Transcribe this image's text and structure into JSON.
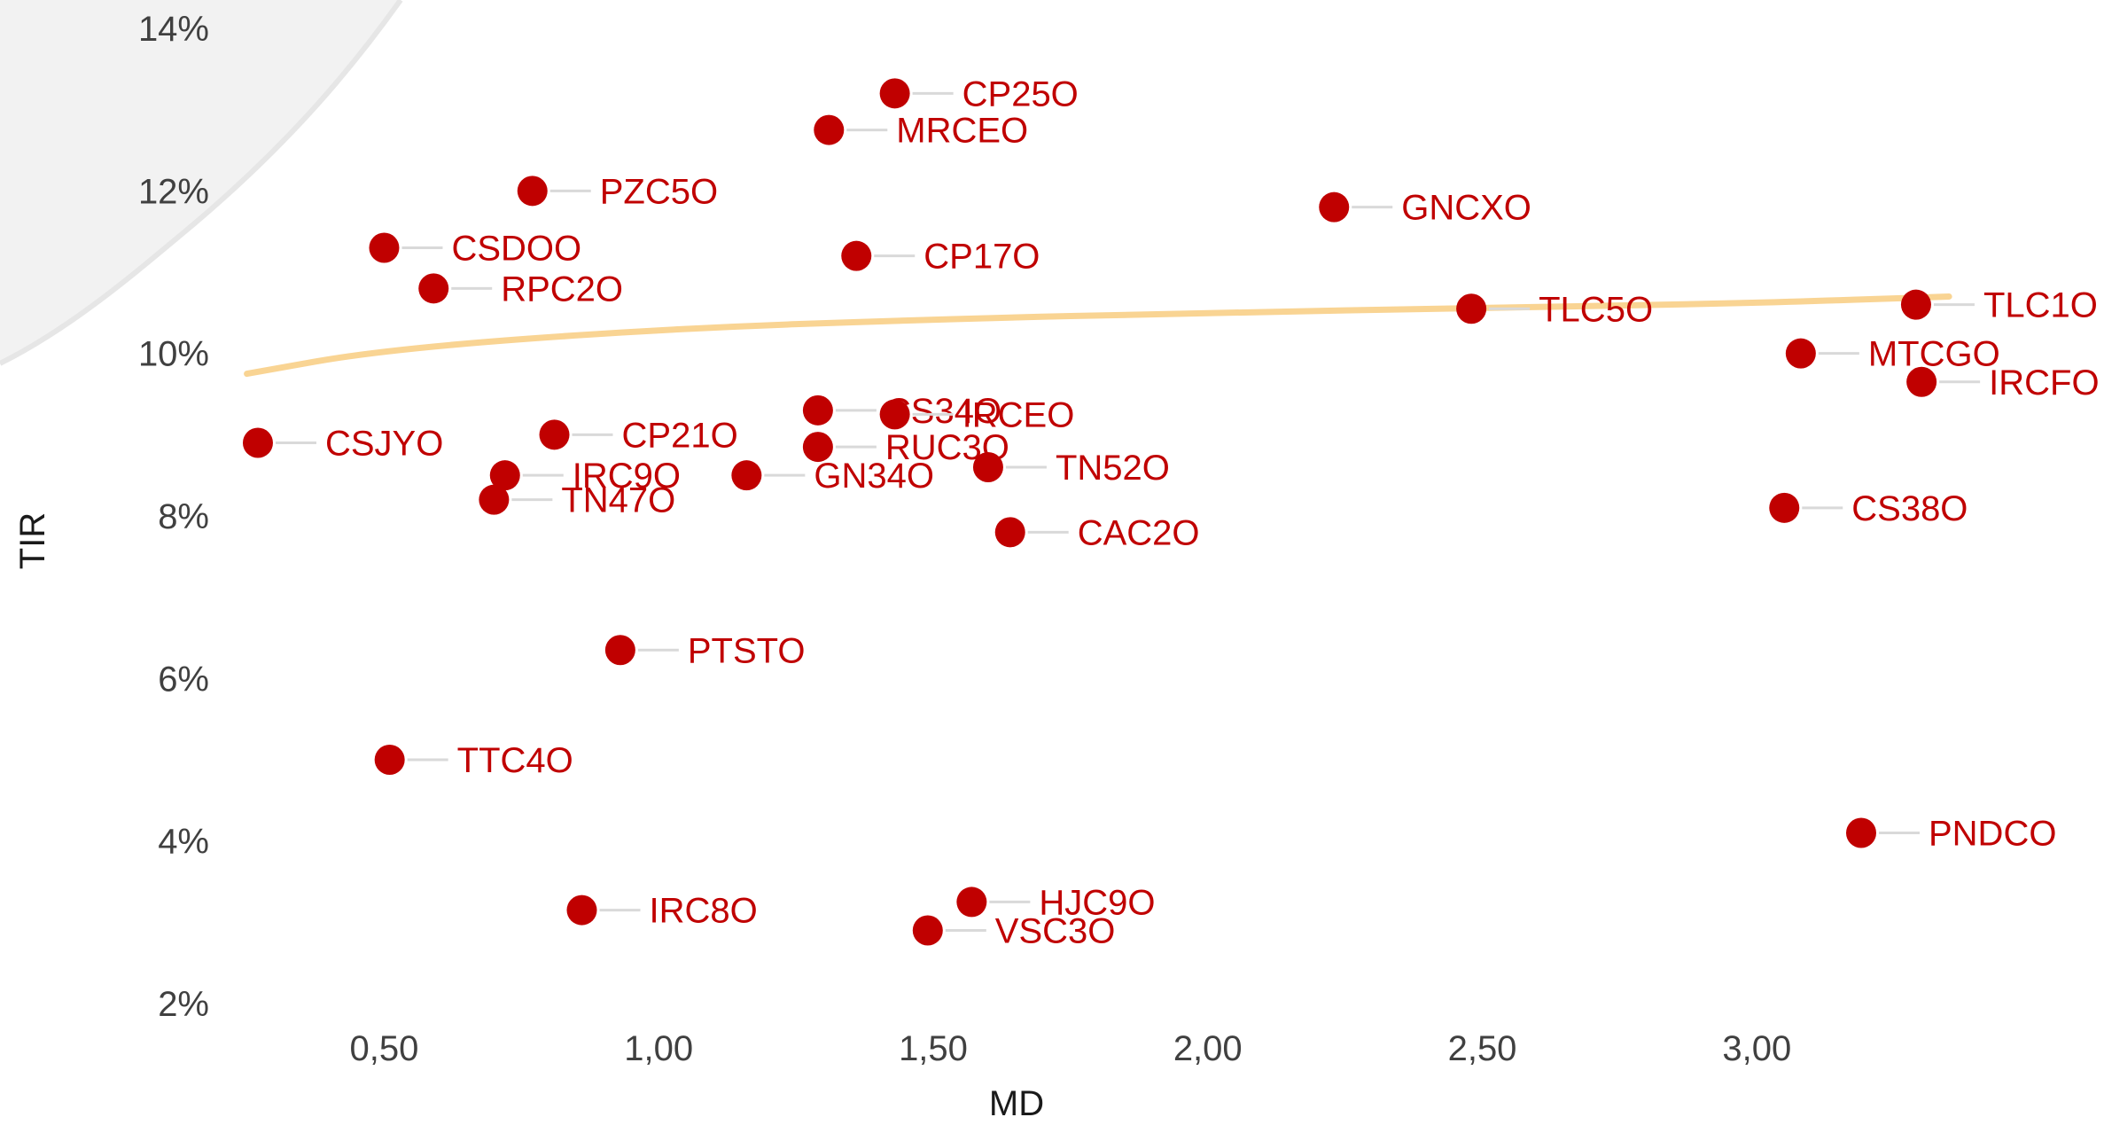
{
  "chart_data": {
    "type": "scatter",
    "xlabel": "MD",
    "ylabel": "TIR",
    "xlim": [
      0.22,
      3.6
    ],
    "ylim": [
      2,
      14
    ],
    "x_ticks": [
      "0,50",
      "1,00",
      "1,50",
      "2,00",
      "2,50",
      "3,00"
    ],
    "x_tick_values": [
      0.5,
      1.0,
      1.5,
      2.0,
      2.5,
      3.0
    ],
    "y_ticks": [
      "2%",
      "4%",
      "6%",
      "8%",
      "10%",
      "12%",
      "14%"
    ],
    "y_tick_values": [
      2,
      4,
      6,
      8,
      10,
      12,
      14
    ],
    "grid": false,
    "colors": {
      "points": "#c00000",
      "labels": "#c00000",
      "trend": "#f9d493",
      "leader": "#d9d9d9"
    },
    "trendline": {
      "type": "logarithmic",
      "points": [
        [
          0.25,
          9.75
        ],
        [
          0.5,
          10.05
        ],
        [
          1.0,
          10.3
        ],
        [
          1.5,
          10.42
        ],
        [
          2.0,
          10.5
        ],
        [
          2.5,
          10.56
        ],
        [
          3.0,
          10.62
        ],
        [
          3.35,
          10.7
        ]
      ]
    },
    "points": [
      {
        "label": "CP25O",
        "x": 1.43,
        "y": 13.2
      },
      {
        "label": "MRCEO",
        "x": 1.31,
        "y": 12.75
      },
      {
        "label": "PZC5O",
        "x": 0.77,
        "y": 12.0
      },
      {
        "label": "GNCXO",
        "x": 2.23,
        "y": 11.8
      },
      {
        "label": "CSDOO",
        "x": 0.5,
        "y": 11.3
      },
      {
        "label": "CP17O",
        "x": 1.36,
        "y": 11.2
      },
      {
        "label": "RPC2O",
        "x": 0.59,
        "y": 10.8
      },
      {
        "label": "TLC5O",
        "x": 2.48,
        "y": 10.55
      },
      {
        "label": "TLC1O",
        "x": 3.29,
        "y": 10.6
      },
      {
        "label": "MTCGO",
        "x": 3.08,
        "y": 10.0
      },
      {
        "label": "IRCFO",
        "x": 3.3,
        "y": 9.65
      },
      {
        "label": "CSJYO",
        "x": 0.27,
        "y": 8.9
      },
      {
        "label": "CP21O",
        "x": 0.81,
        "y": 9.0
      },
      {
        "label": "CS34O",
        "x": 1.29,
        "y": 9.3
      },
      {
        "label": "IRCEO",
        "x": 1.43,
        "y": 9.25
      },
      {
        "label": "RUC3O",
        "x": 1.29,
        "y": 8.85
      },
      {
        "label": "TN52O",
        "x": 1.6,
        "y": 8.6
      },
      {
        "label": "IRC9O",
        "x": 0.72,
        "y": 8.5
      },
      {
        "label": "GN34O",
        "x": 1.16,
        "y": 8.5
      },
      {
        "label": "TN47O",
        "x": 0.7,
        "y": 8.2
      },
      {
        "label": "CS38O",
        "x": 3.05,
        "y": 8.1
      },
      {
        "label": "CAC2O",
        "x": 1.64,
        "y": 7.8
      },
      {
        "label": "PTSTO",
        "x": 0.93,
        "y": 6.35
      },
      {
        "label": "TTC4O",
        "x": 0.51,
        "y": 5.0
      },
      {
        "label": "PNDCO",
        "x": 3.19,
        "y": 4.1
      },
      {
        "label": "HJC9O",
        "x": 1.57,
        "y": 3.25
      },
      {
        "label": "IRC8O",
        "x": 0.86,
        "y": 3.15
      },
      {
        "label": "VSC3O",
        "x": 1.49,
        "y": 2.9
      }
    ]
  }
}
